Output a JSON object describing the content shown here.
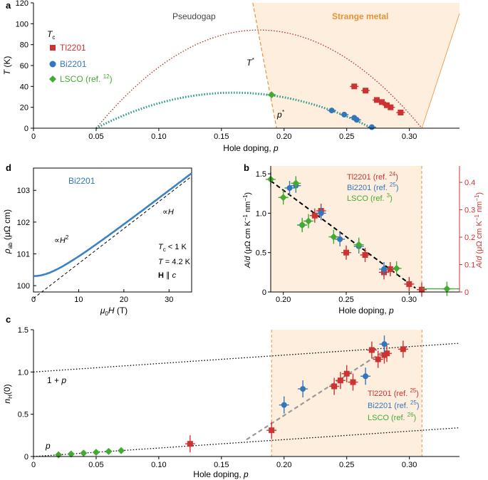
{
  "chart_data": [
    {
      "panel": "a",
      "type": "line",
      "xlabel_prefix": "Hole doping, ",
      "xlabel_var": "p",
      "ylabel": "T (K)",
      "xlim": [
        0,
        0.34
      ],
      "ylim": [
        0,
        120
      ],
      "xticks": [
        0,
        0.05,
        0.1,
        0.15,
        0.2,
        0.25,
        0.3
      ],
      "xtick_labels": [
        "0",
        "0.05",
        "0.10",
        "0.15",
        "0.20",
        "0.25",
        "0.30"
      ],
      "yticks": [
        0,
        20,
        40,
        60,
        80,
        100,
        120
      ],
      "ytick_labels": [
        "0",
        "20",
        "40",
        "60",
        "80",
        "100",
        "120"
      ],
      "region_pseudogap": "Pseudogap",
      "region_strange_metal": "Strange metal",
      "tstar_label": "T*",
      "pstar_label": "p*",
      "tc_label": "Tc",
      "legend": [
        {
          "name": "Tl2201",
          "ref": "",
          "color": "#cc3333",
          "marker": "square"
        },
        {
          "name": "Bi2201",
          "ref": "",
          "color": "#3377bb",
          "marker": "circle"
        },
        {
          "name": "LSCO (ref. ",
          "ref": "12",
          "color": "#44aa33",
          "marker": "diamond"
        }
      ],
      "dome_tl2201": {
        "p_min": 0.05,
        "p_max": 0.31,
        "tc_max": 94
      },
      "dome_lsco": {
        "p_min": 0.05,
        "p_max": 0.27,
        "tc_max": 34
      },
      "series": [
        {
          "name": "Tl2201",
          "x": [
            0.256,
            0.265,
            0.274,
            0.278,
            0.282,
            0.285,
            0.293
          ],
          "y": [
            40,
            36,
            27,
            25,
            22,
            20,
            15
          ]
        },
        {
          "name": "Bi2201",
          "x": [
            0.238,
            0.248,
            0.256,
            0.258,
            0.27
          ],
          "y": [
            17,
            13,
            10,
            8,
            1
          ]
        },
        {
          "name": "LSCO",
          "x": [
            0.19
          ],
          "y": [
            32
          ]
        }
      ]
    },
    {
      "panel": "d",
      "type": "line",
      "xlabel": "μ0H (T)",
      "ylabel": "ρab (μΩ cm)",
      "xlim": [
        0,
        35
      ],
      "ylim": [
        99.8,
        103.7
      ],
      "xticks": [
        0,
        10,
        20,
        30
      ],
      "xtick_labels": [
        "0",
        "10",
        "20",
        "30"
      ],
      "yticks": [
        100,
        101,
        102,
        103
      ],
      "ytick_labels": [
        "100",
        "101",
        "102",
        "103"
      ],
      "series_label": "Bi2201",
      "anno_h2": "∝H2",
      "anno_h": "∝H",
      "cond_tc": "Tc < 1 K",
      "cond_t": "T = 4.2 K",
      "cond_h": "H ∥ c",
      "linear_fit": {
        "intercept": 99.6,
        "slope": 0.1097
      },
      "curve": {
        "rho0": 100.3,
        "beta": 0.1097,
        "h_star": 6
      }
    },
    {
      "panel": "b",
      "type": "scatter",
      "xlabel_prefix": "Hole doping, ",
      "xlabel_var": "p",
      "ylabel_left": "A/d (μΩ cm K−1 nm−1)",
      "ylabel_right": "A/d (μΩ cm K−1 nm−1)",
      "xlim": [
        0.19,
        0.34
      ],
      "ylim_left": [
        0,
        1.6
      ],
      "ylim_right": [
        0,
        0.46
      ],
      "xticks": [
        0.2,
        0.25,
        0.3
      ],
      "xtick_labels": [
        "0.20",
        "0.25",
        "0.30"
      ],
      "yticks_left": [
        0,
        0.5,
        1.0,
        1.5
      ],
      "ytick_labels_left": [
        "0",
        "0.5",
        "1.0",
        "1.5"
      ],
      "yticks_right": [
        0,
        0.1,
        0.2,
        0.3,
        0.4
      ],
      "ytick_labels_right": [
        "0",
        "0.1",
        "0.2",
        "0.3",
        "0.4"
      ],
      "legend": [
        {
          "name": "Tl2201 (ref. ",
          "ref": "24",
          "color": "#cc3333"
        },
        {
          "name": "Bi2201 (ref. ",
          "ref": "25",
          "color": "#3377bb"
        },
        {
          "name": "LSCO (ref. ",
          "ref": "3",
          "color": "#44aa33"
        }
      ],
      "fit_line": {
        "x": [
          0.19,
          0.305
        ],
        "y": [
          1.41,
          0.05
        ]
      },
      "series": [
        {
          "name": "Tl2201",
          "x": [
            0.225,
            0.23,
            0.25,
            0.265,
            0.28,
            0.285,
            0.3,
            0.31
          ],
          "y": [
            0.97,
            1.03,
            0.5,
            0.47,
            0.25,
            0.29,
            0.1,
            0.03
          ]
        },
        {
          "name": "Bi2201",
          "x": [
            0.205,
            0.21,
            0.215,
            0.23,
            0.245,
            0.26,
            0.28
          ],
          "y": [
            1.32,
            1.35,
            0.85,
            1.0,
            0.67,
            0.58,
            0.29
          ]
        },
        {
          "name": "LSCO",
          "x": [
            0.19,
            0.2,
            0.21,
            0.215,
            0.22,
            0.24,
            0.26,
            0.29,
            0.33
          ],
          "y": [
            1.43,
            1.2,
            1.38,
            0.85,
            0.9,
            0.7,
            0.6,
            0.3,
            0.04
          ]
        }
      ]
    },
    {
      "panel": "c",
      "type": "scatter",
      "xlabel_prefix": "Hole doping, ",
      "xlabel_var": "p",
      "ylabel": "nH(0)",
      "xlim": [
        0,
        0.34
      ],
      "ylim": [
        0,
        1.5
      ],
      "xticks": [
        0,
        0.05,
        0.1,
        0.15,
        0.2,
        0.25,
        0.3
      ],
      "xtick_labels": [
        "0",
        "0.05",
        "0.10",
        "0.15",
        "0.20",
        "0.25",
        "0.30"
      ],
      "yticks": [
        0,
        0.5,
        1.0,
        1.5
      ],
      "ytick_labels": [
        "0",
        "0.5",
        "1.0",
        "1.5"
      ],
      "line_one_plus_p_label": "1 + p",
      "line_p_label": "p",
      "legend": [
        {
          "name": "Tl2201 (ref. ",
          "ref": "25",
          "color": "#cc3333"
        },
        {
          "name": "Bi2201 (ref. ",
          "ref": "25",
          "color": "#3377bb"
        },
        {
          "name": "LSCO (ref. ",
          "ref": "26",
          "color": "#44aa33"
        }
      ],
      "gray_line": {
        "x": [
          0.17,
          0.28
        ],
        "y": [
          0.2,
          1.25
        ]
      },
      "series": [
        {
          "name": "Tl2201",
          "x": [
            0.125,
            0.19,
            0.24,
            0.245,
            0.25,
            0.255,
            0.27,
            0.275,
            0.28,
            0.282,
            0.295
          ],
          "y": [
            0.15,
            0.31,
            0.83,
            0.9,
            0.98,
            0.88,
            1.26,
            1.15,
            1.2,
            1.22,
            1.27
          ]
        },
        {
          "name": "Bi2201",
          "x": [
            0.2,
            0.215,
            0.265,
            0.28
          ],
          "y": [
            0.61,
            0.8,
            0.95,
            1.33
          ]
        },
        {
          "name": "LSCO",
          "x": [
            0.02,
            0.03,
            0.04,
            0.05,
            0.06,
            0.07
          ],
          "y": [
            0.02,
            0.03,
            0.04,
            0.05,
            0.06,
            0.07
          ]
        }
      ]
    }
  ],
  "panel_labels": {
    "a": "a",
    "b": "b",
    "c": "c",
    "d": "d"
  }
}
